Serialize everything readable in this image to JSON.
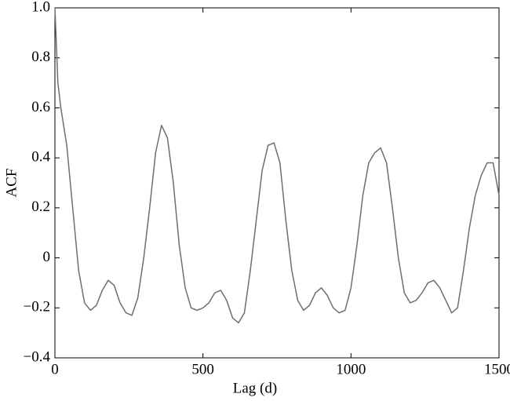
{
  "chart_data": {
    "type": "line",
    "xlabel": "Lag (d)",
    "ylabel": "ACF",
    "x": [
      0,
      5,
      10,
      20,
      40,
      60,
      80,
      100,
      120,
      140,
      160,
      180,
      200,
      220,
      240,
      260,
      280,
      300,
      320,
      340,
      360,
      380,
      400,
      420,
      440,
      460,
      480,
      500,
      520,
      540,
      560,
      580,
      600,
      620,
      640,
      660,
      680,
      700,
      720,
      740,
      760,
      780,
      800,
      820,
      840,
      860,
      880,
      900,
      920,
      940,
      960,
      980,
      1000,
      1020,
      1040,
      1060,
      1080,
      1100,
      1120,
      1140,
      1160,
      1180,
      1200,
      1220,
      1240,
      1260,
      1280,
      1300,
      1320,
      1340,
      1360,
      1380,
      1400,
      1420,
      1440,
      1460,
      1480,
      1500
    ],
    "series": [
      {
        "name": "ACF",
        "color": "#6e6e6e",
        "values": [
          1.0,
          0.85,
          0.7,
          0.6,
          0.45,
          0.2,
          -0.05,
          -0.18,
          -0.21,
          -0.19,
          -0.13,
          -0.09,
          -0.11,
          -0.18,
          -0.22,
          -0.23,
          -0.16,
          0.0,
          0.2,
          0.42,
          0.53,
          0.48,
          0.3,
          0.05,
          -0.12,
          -0.2,
          -0.21,
          -0.2,
          -0.18,
          -0.14,
          -0.13,
          -0.17,
          -0.24,
          -0.26,
          -0.22,
          -0.05,
          0.15,
          0.35,
          0.45,
          0.46,
          0.38,
          0.15,
          -0.05,
          -0.17,
          -0.21,
          -0.19,
          -0.14,
          -0.12,
          -0.15,
          -0.2,
          -0.22,
          -0.21,
          -0.12,
          0.05,
          0.25,
          0.38,
          0.42,
          0.44,
          0.38,
          0.2,
          0.0,
          -0.14,
          -0.18,
          -0.17,
          -0.14,
          -0.1,
          -0.09,
          -0.12,
          -0.17,
          -0.22,
          -0.2,
          -0.05,
          0.12,
          0.25,
          0.33,
          0.38,
          0.38,
          0.25
        ]
      }
    ],
    "xlim": [
      0,
      1500
    ],
    "xticks": [
      0,
      500,
      1000,
      1500
    ],
    "ylim": [
      -0.4,
      1.0
    ],
    "yticks": [
      {
        "value": -0.4,
        "label": "−0.4"
      },
      {
        "value": -0.2,
        "label": "−0.2"
      },
      0,
      0.2,
      0.4,
      0.6,
      0.8,
      {
        "value": 1.0,
        "label": "1.0"
      }
    ],
    "grid": false
  }
}
